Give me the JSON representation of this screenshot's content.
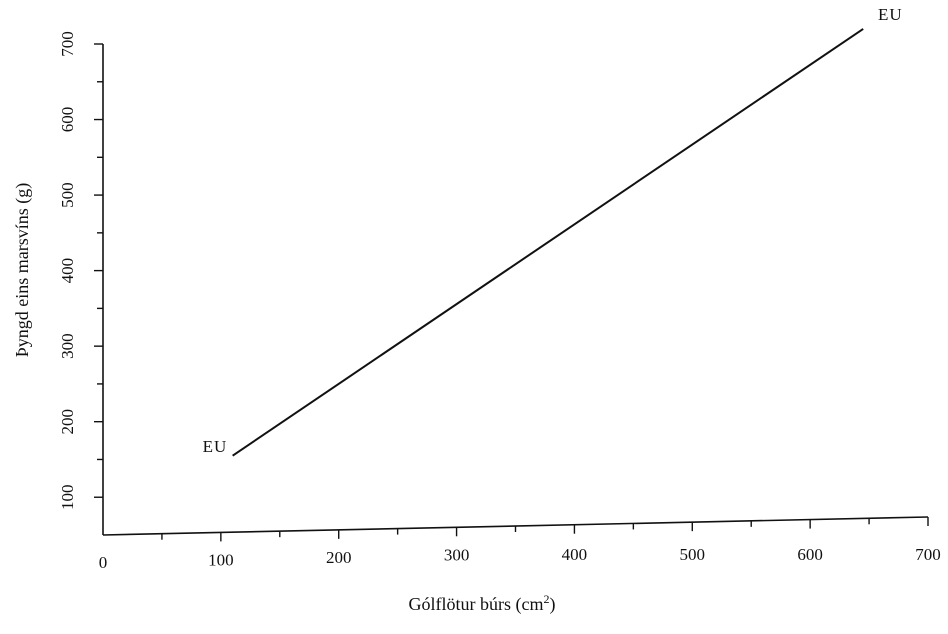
{
  "chart_data": {
    "type": "line",
    "title": "",
    "xlabel": "Gólflötur búrs (cm",
    "xlabel_sup": "2",
    "xlabel_end": ")",
    "ylabel": "Þyngd eins marsvíns (g)",
    "xlim": [
      0,
      700
    ],
    "ylim": [
      50,
      700
    ],
    "xticks": [
      0,
      100,
      200,
      300,
      400,
      500,
      600,
      700
    ],
    "yticks": [
      100,
      200,
      300,
      400,
      500,
      600,
      700
    ],
    "xtick_labels": [
      "0",
      "100",
      "200",
      "300",
      "400",
      "500",
      "600",
      "700"
    ],
    "ytick_labels": [
      "100",
      "200",
      "300",
      "400",
      "500",
      "600",
      "700"
    ],
    "grid": false,
    "series": [
      {
        "x": [
          110,
          645
        ],
        "y": [
          155,
          720
        ]
      }
    ],
    "annotations": [
      {
        "text": "EU",
        "x": 95,
        "y": 160
      },
      {
        "text": "EU",
        "x": 668,
        "y": 732
      }
    ]
  }
}
